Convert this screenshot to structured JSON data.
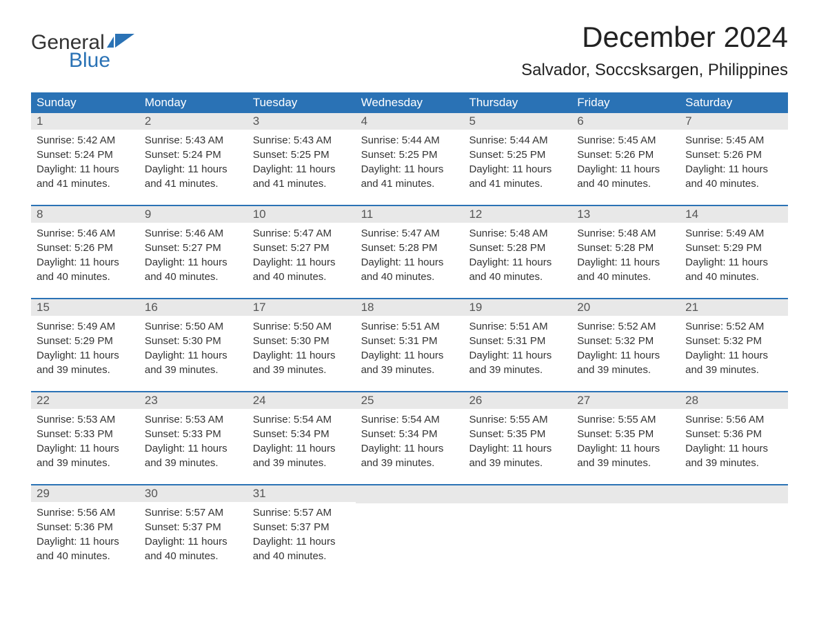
{
  "logo": {
    "text_general": "General",
    "text_blue": "Blue",
    "icon_color": "#2a72b5"
  },
  "title": "December 2024",
  "location": "Salvador, Soccsksargen, Philippines",
  "colors": {
    "header_bg": "#2a72b5",
    "header_text": "#ffffff",
    "day_number_bg": "#e8e8e8",
    "week_border": "#2a72b5",
    "body_text": "#333333",
    "background": "#ffffff"
  },
  "day_names": [
    "Sunday",
    "Monday",
    "Tuesday",
    "Wednesday",
    "Thursday",
    "Friday",
    "Saturday"
  ],
  "weeks": [
    [
      {
        "day": "1",
        "sunrise": "5:42 AM",
        "sunset": "5:24 PM",
        "daylight": "11 hours and 41 minutes."
      },
      {
        "day": "2",
        "sunrise": "5:43 AM",
        "sunset": "5:24 PM",
        "daylight": "11 hours and 41 minutes."
      },
      {
        "day": "3",
        "sunrise": "5:43 AM",
        "sunset": "5:25 PM",
        "daylight": "11 hours and 41 minutes."
      },
      {
        "day": "4",
        "sunrise": "5:44 AM",
        "sunset": "5:25 PM",
        "daylight": "11 hours and 41 minutes."
      },
      {
        "day": "5",
        "sunrise": "5:44 AM",
        "sunset": "5:25 PM",
        "daylight": "11 hours and 41 minutes."
      },
      {
        "day": "6",
        "sunrise": "5:45 AM",
        "sunset": "5:26 PM",
        "daylight": "11 hours and 40 minutes."
      },
      {
        "day": "7",
        "sunrise": "5:45 AM",
        "sunset": "5:26 PM",
        "daylight": "11 hours and 40 minutes."
      }
    ],
    [
      {
        "day": "8",
        "sunrise": "5:46 AM",
        "sunset": "5:26 PM",
        "daylight": "11 hours and 40 minutes."
      },
      {
        "day": "9",
        "sunrise": "5:46 AM",
        "sunset": "5:27 PM",
        "daylight": "11 hours and 40 minutes."
      },
      {
        "day": "10",
        "sunrise": "5:47 AM",
        "sunset": "5:27 PM",
        "daylight": "11 hours and 40 minutes."
      },
      {
        "day": "11",
        "sunrise": "5:47 AM",
        "sunset": "5:28 PM",
        "daylight": "11 hours and 40 minutes."
      },
      {
        "day": "12",
        "sunrise": "5:48 AM",
        "sunset": "5:28 PM",
        "daylight": "11 hours and 40 minutes."
      },
      {
        "day": "13",
        "sunrise": "5:48 AM",
        "sunset": "5:28 PM",
        "daylight": "11 hours and 40 minutes."
      },
      {
        "day": "14",
        "sunrise": "5:49 AM",
        "sunset": "5:29 PM",
        "daylight": "11 hours and 40 minutes."
      }
    ],
    [
      {
        "day": "15",
        "sunrise": "5:49 AM",
        "sunset": "5:29 PM",
        "daylight": "11 hours and 39 minutes."
      },
      {
        "day": "16",
        "sunrise": "5:50 AM",
        "sunset": "5:30 PM",
        "daylight": "11 hours and 39 minutes."
      },
      {
        "day": "17",
        "sunrise": "5:50 AM",
        "sunset": "5:30 PM",
        "daylight": "11 hours and 39 minutes."
      },
      {
        "day": "18",
        "sunrise": "5:51 AM",
        "sunset": "5:31 PM",
        "daylight": "11 hours and 39 minutes."
      },
      {
        "day": "19",
        "sunrise": "5:51 AM",
        "sunset": "5:31 PM",
        "daylight": "11 hours and 39 minutes."
      },
      {
        "day": "20",
        "sunrise": "5:52 AM",
        "sunset": "5:32 PM",
        "daylight": "11 hours and 39 minutes."
      },
      {
        "day": "21",
        "sunrise": "5:52 AM",
        "sunset": "5:32 PM",
        "daylight": "11 hours and 39 minutes."
      }
    ],
    [
      {
        "day": "22",
        "sunrise": "5:53 AM",
        "sunset": "5:33 PM",
        "daylight": "11 hours and 39 minutes."
      },
      {
        "day": "23",
        "sunrise": "5:53 AM",
        "sunset": "5:33 PM",
        "daylight": "11 hours and 39 minutes."
      },
      {
        "day": "24",
        "sunrise": "5:54 AM",
        "sunset": "5:34 PM",
        "daylight": "11 hours and 39 minutes."
      },
      {
        "day": "25",
        "sunrise": "5:54 AM",
        "sunset": "5:34 PM",
        "daylight": "11 hours and 39 minutes."
      },
      {
        "day": "26",
        "sunrise": "5:55 AM",
        "sunset": "5:35 PM",
        "daylight": "11 hours and 39 minutes."
      },
      {
        "day": "27",
        "sunrise": "5:55 AM",
        "sunset": "5:35 PM",
        "daylight": "11 hours and 39 minutes."
      },
      {
        "day": "28",
        "sunrise": "5:56 AM",
        "sunset": "5:36 PM",
        "daylight": "11 hours and 39 minutes."
      }
    ],
    [
      {
        "day": "29",
        "sunrise": "5:56 AM",
        "sunset": "5:36 PM",
        "daylight": "11 hours and 40 minutes."
      },
      {
        "day": "30",
        "sunrise": "5:57 AM",
        "sunset": "5:37 PM",
        "daylight": "11 hours and 40 minutes."
      },
      {
        "day": "31",
        "sunrise": "5:57 AM",
        "sunset": "5:37 PM",
        "daylight": "11 hours and 40 minutes."
      },
      null,
      null,
      null,
      null
    ]
  ],
  "labels": {
    "sunrise_prefix": "Sunrise: ",
    "sunset_prefix": "Sunset: ",
    "daylight_prefix": "Daylight: "
  }
}
